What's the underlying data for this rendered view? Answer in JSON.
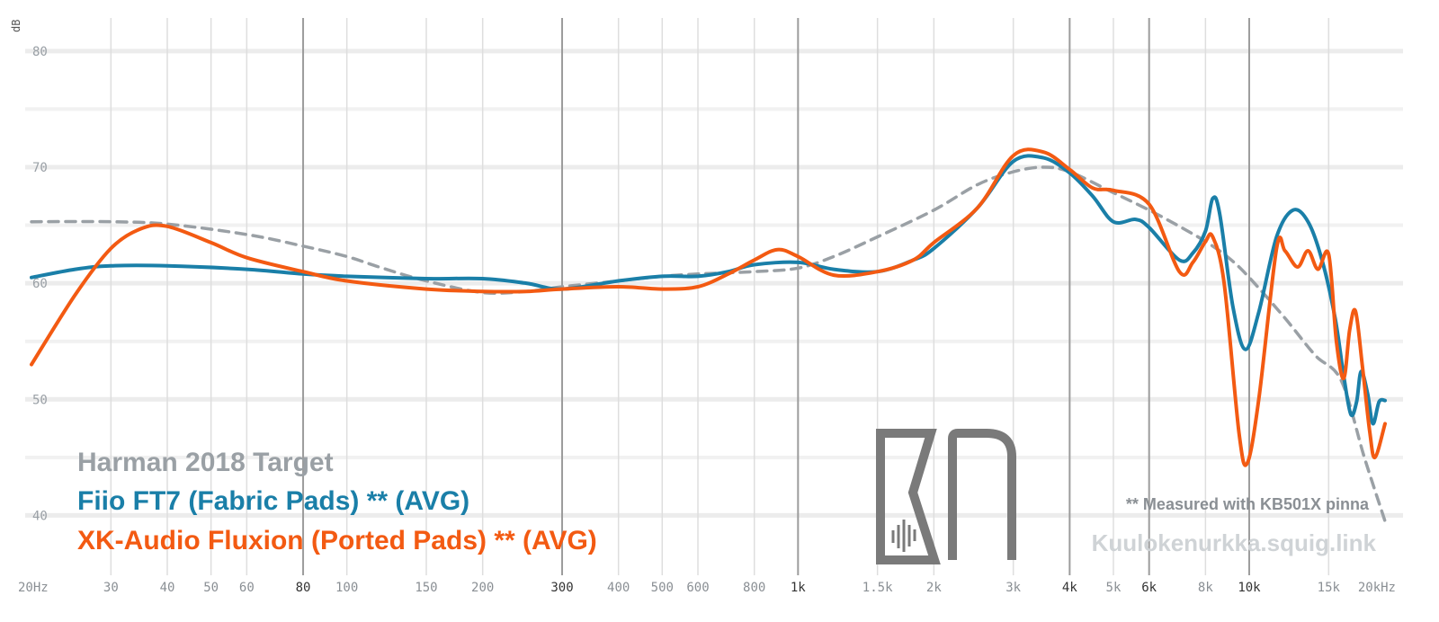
{
  "chart_data": {
    "type": "line",
    "x_scale": "log",
    "xlim": [
      20,
      20000
    ],
    "ylim": [
      35,
      82
    ],
    "ylabel": "dB",
    "y_ticks": [
      {
        "value": 80,
        "label": "80"
      },
      {
        "value": 70,
        "label": "70"
      },
      {
        "value": 60,
        "label": "60"
      },
      {
        "value": 50,
        "label": "50"
      },
      {
        "value": 40,
        "label": "40"
      }
    ],
    "x_ticks": [
      {
        "value": 20,
        "label": "20Hz",
        "major": false
      },
      {
        "value": 30,
        "label": "30",
        "major": false
      },
      {
        "value": 40,
        "label": "40",
        "major": false
      },
      {
        "value": 50,
        "label": "50",
        "major": false
      },
      {
        "value": 60,
        "label": "60",
        "major": false
      },
      {
        "value": 80,
        "label": "80",
        "major": true
      },
      {
        "value": 100,
        "label": "100",
        "major": false
      },
      {
        "value": 150,
        "label": "150",
        "major": false
      },
      {
        "value": 200,
        "label": "200",
        "major": false
      },
      {
        "value": 300,
        "label": "300",
        "major": true
      },
      {
        "value": 400,
        "label": "400",
        "major": false
      },
      {
        "value": 500,
        "label": "500",
        "major": false
      },
      {
        "value": 600,
        "label": "600",
        "major": false
      },
      {
        "value": 800,
        "label": "800",
        "major": false
      },
      {
        "value": 1000,
        "label": "1k",
        "major": true
      },
      {
        "value": 1500,
        "label": "1.5k",
        "major": false
      },
      {
        "value": 2000,
        "label": "2k",
        "major": false
      },
      {
        "value": 3000,
        "label": "3k",
        "major": false
      },
      {
        "value": 4000,
        "label": "4k",
        "major": true
      },
      {
        "value": 5000,
        "label": "5k",
        "major": false
      },
      {
        "value": 6000,
        "label": "6k",
        "major": true
      },
      {
        "value": 8000,
        "label": "8k",
        "major": false
      },
      {
        "value": 10000,
        "label": "10k",
        "major": true
      },
      {
        "value": 15000,
        "label": "15k",
        "major": false
      },
      {
        "value": 20000,
        "label": "20kHz",
        "major": false
      }
    ],
    "series": [
      {
        "name": "Harman 2018 Target",
        "color": "#9aa0a5",
        "dashed": true,
        "points": [
          [
            20,
            65.3
          ],
          [
            30,
            65.3
          ],
          [
            40,
            65.1
          ],
          [
            60,
            64.2
          ],
          [
            80,
            63.2
          ],
          [
            100,
            62.3
          ],
          [
            120,
            61.3
          ],
          [
            150,
            60.2
          ],
          [
            200,
            59.2
          ],
          [
            250,
            59.3
          ],
          [
            300,
            59.7
          ],
          [
            400,
            60.2
          ],
          [
            500,
            60.6
          ],
          [
            600,
            60.8
          ],
          [
            800,
            61.0
          ],
          [
            1000,
            61.3
          ],
          [
            1200,
            62.3
          ],
          [
            1500,
            64.0
          ],
          [
            2000,
            66.3
          ],
          [
            2500,
            68.5
          ],
          [
            3000,
            69.6
          ],
          [
            3500,
            70.0
          ],
          [
            4000,
            69.6
          ],
          [
            5000,
            67.8
          ],
          [
            6000,
            66.3
          ],
          [
            7000,
            64.9
          ],
          [
            8000,
            63.6
          ],
          [
            9000,
            62.2
          ],
          [
            10000,
            60.5
          ],
          [
            12000,
            57.0
          ],
          [
            14000,
            53.8
          ],
          [
            16000,
            51.6
          ],
          [
            18000,
            45.0
          ],
          [
            20000,
            39.5
          ]
        ]
      },
      {
        "name": "Fiio FT7 (Fabric Pads) ** (AVG)",
        "color": "#1a7fa8",
        "dashed": false,
        "points": [
          [
            20,
            60.5
          ],
          [
            25,
            61.2
          ],
          [
            30,
            61.5
          ],
          [
            40,
            61.5
          ],
          [
            60,
            61.2
          ],
          [
            80,
            60.8
          ],
          [
            100,
            60.6
          ],
          [
            150,
            60.4
          ],
          [
            200,
            60.4
          ],
          [
            250,
            60.0
          ],
          [
            300,
            59.5
          ],
          [
            400,
            60.2
          ],
          [
            500,
            60.6
          ],
          [
            600,
            60.6
          ],
          [
            700,
            61.0
          ],
          [
            800,
            61.6
          ],
          [
            1000,
            61.8
          ],
          [
            1200,
            61.2
          ],
          [
            1500,
            61.0
          ],
          [
            1800,
            62.0
          ],
          [
            2000,
            63.0
          ],
          [
            2500,
            66.5
          ],
          [
            3000,
            70.5
          ],
          [
            3500,
            70.8
          ],
          [
            4000,
            69.5
          ],
          [
            4500,
            67.5
          ],
          [
            5000,
            65.3
          ],
          [
            5600,
            65.5
          ],
          [
            6000,
            64.8
          ],
          [
            7000,
            62.0
          ],
          [
            7500,
            62.6
          ],
          [
            8000,
            64.5
          ],
          [
            8300,
            67.3
          ],
          [
            8600,
            66.0
          ],
          [
            9200,
            58.0
          ],
          [
            9800,
            54.3
          ],
          [
            10500,
            57.5
          ],
          [
            11500,
            64.0
          ],
          [
            12500,
            66.3
          ],
          [
            13500,
            65.3
          ],
          [
            14500,
            62.0
          ],
          [
            15500,
            57.0
          ],
          [
            16200,
            52.0
          ],
          [
            16800,
            48.7
          ],
          [
            17300,
            49.8
          ],
          [
            17700,
            52.4
          ],
          [
            18300,
            50.5
          ],
          [
            18800,
            47.9
          ],
          [
            19400,
            49.8
          ],
          [
            20000,
            49.9
          ]
        ]
      },
      {
        "name": "XK-Audio Fluxion (Ported Pads) ** (AVG)",
        "color": "#f35a12",
        "dashed": false,
        "points": [
          [
            20,
            53.0
          ],
          [
            25,
            59.0
          ],
          [
            30,
            63.0
          ],
          [
            35,
            64.7
          ],
          [
            40,
            64.9
          ],
          [
            50,
            63.5
          ],
          [
            60,
            62.2
          ],
          [
            80,
            61.0
          ],
          [
            100,
            60.2
          ],
          [
            150,
            59.5
          ],
          [
            200,
            59.3
          ],
          [
            250,
            59.3
          ],
          [
            300,
            59.5
          ],
          [
            400,
            59.7
          ],
          [
            500,
            59.5
          ],
          [
            600,
            59.7
          ],
          [
            700,
            60.8
          ],
          [
            800,
            62.0
          ],
          [
            900,
            62.9
          ],
          [
            1000,
            62.3
          ],
          [
            1200,
            60.7
          ],
          [
            1500,
            61.0
          ],
          [
            1800,
            62.0
          ],
          [
            2000,
            63.5
          ],
          [
            2500,
            66.5
          ],
          [
            3000,
            71.0
          ],
          [
            3500,
            71.3
          ],
          [
            4000,
            69.8
          ],
          [
            4500,
            68.2
          ],
          [
            5000,
            68.0
          ],
          [
            6000,
            66.8
          ],
          [
            7000,
            61.0
          ],
          [
            7500,
            61.8
          ],
          [
            8000,
            63.6
          ],
          [
            8300,
            64.0
          ],
          [
            8800,
            60.0
          ],
          [
            9500,
            47.0
          ],
          [
            9900,
            44.5
          ],
          [
            10500,
            50.0
          ],
          [
            11500,
            63.0
          ],
          [
            12000,
            62.8
          ],
          [
            12800,
            61.4
          ],
          [
            13500,
            62.8
          ],
          [
            14200,
            61.2
          ],
          [
            15000,
            62.5
          ],
          [
            15600,
            55.0
          ],
          [
            16200,
            51.8
          ],
          [
            16700,
            56.0
          ],
          [
            17200,
            57.6
          ],
          [
            17800,
            53.0
          ],
          [
            18500,
            47.2
          ],
          [
            19000,
            45.0
          ],
          [
            20000,
            47.9
          ]
        ]
      }
    ],
    "annotations": {
      "note": "** Measured with KB501X pinna",
      "watermark": "Kuulokenurkka.squig.link"
    }
  },
  "logo": {
    "name": "KN monogram",
    "color": "#7a7a7a"
  }
}
